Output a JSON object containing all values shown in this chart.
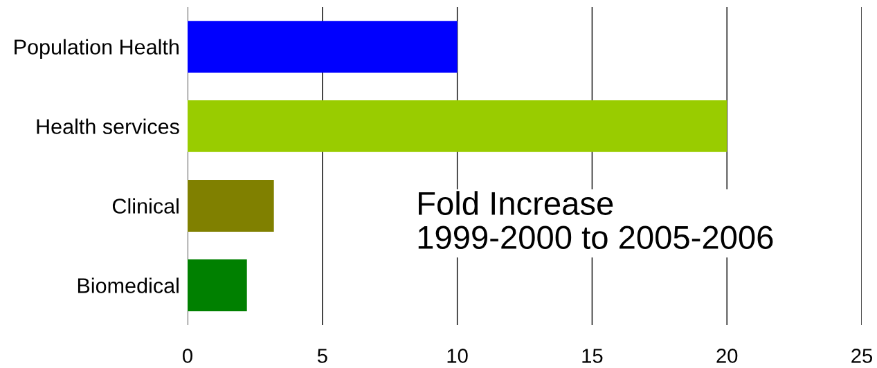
{
  "chart_data": {
    "type": "bar",
    "orientation": "horizontal",
    "categories": [
      "Population Health",
      "Health services",
      "Clinical",
      "Biomedical"
    ],
    "values": [
      10.0,
      20.0,
      3.2,
      2.2
    ],
    "colors": [
      "#0000ff",
      "#99cc00",
      "#808000",
      "#008000"
    ],
    "xlim": [
      0,
      25
    ],
    "xticks": [
      0,
      5,
      10,
      15,
      20,
      25
    ],
    "grid": "x",
    "annotations": [
      "Fold Increase\n1999-2000 to 2005-2006"
    ]
  }
}
